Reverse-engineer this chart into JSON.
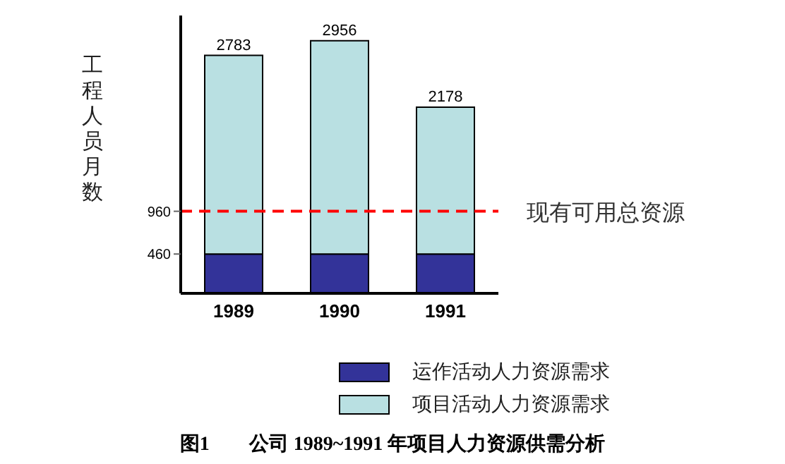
{
  "chart_data": {
    "type": "bar",
    "title": "图1　　公司 1989~1991 年项目人力资源供需分析",
    "ylabel": "工程人员月数",
    "categories": [
      "1989",
      "1990",
      "1991"
    ],
    "stacked": true,
    "series": [
      {
        "name": "运作活动人力资源需求",
        "color": "#333399",
        "values": [
          460,
          460,
          460
        ]
      },
      {
        "name": "项目活动人力资源需求",
        "color": "#b9e0e2",
        "values": [
          2323,
          2496,
          1718
        ]
      }
    ],
    "totals": [
      "2783",
      "2956",
      "2178"
    ],
    "ylim": [
      0,
      3250
    ],
    "yticks": [
      460,
      960
    ],
    "grid": false,
    "legend": "bottom",
    "ref_lines": [
      {
        "axis": "y",
        "value": 960,
        "label": "现有可用总资源",
        "color": "#ff0000",
        "line_style": "dashed"
      }
    ]
  }
}
